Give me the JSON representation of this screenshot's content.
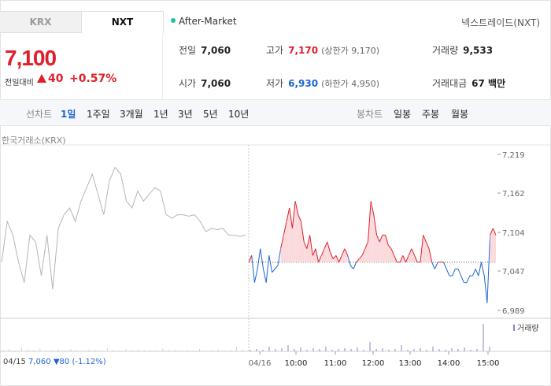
{
  "tabs": {
    "krx": "KRX",
    "nxt": "NXT"
  },
  "session_label": "After-Market",
  "exchange_label": "넥스트레이드(NXT)",
  "price": {
    "current": "7,100",
    "change_label": "전일대비",
    "change_value": "40",
    "change_percent": "+0.57%"
  },
  "stats": {
    "prev_close": {
      "label": "전일",
      "value": "7,060"
    },
    "high": {
      "label": "고가",
      "value": "7,170",
      "limit": "(상한가 9,170)"
    },
    "volume": {
      "label": "거래량",
      "value": "9,533"
    },
    "open": {
      "label": "시가",
      "value": "7,060"
    },
    "low": {
      "label": "저가",
      "value": "6,930",
      "limit": "(하한가 4,950)"
    },
    "amount": {
      "label": "거래대금",
      "value": "67 백만"
    }
  },
  "period_bar": {
    "line_label": "선차트",
    "line_options": [
      "1일",
      "1주일",
      "3개월",
      "1년",
      "3년",
      "5년",
      "10년"
    ],
    "selected": "1일",
    "candle_label": "봉차트",
    "candle_options": [
      "일봉",
      "주봉",
      "월봉"
    ]
  },
  "chart_source": "한국거래소(KRX)",
  "volume_legend": "거래량",
  "prev_day": {
    "date": "04/15",
    "price": "7,060",
    "change": "80",
    "change_pct": "(-1.12%)"
  },
  "colors": {
    "up": "#e01f2d",
    "down": "#1e64d2",
    "accent_green": "#19c3a0",
    "prev_line": "#b5b5b5"
  },
  "chart_data": {
    "type": "line",
    "y_ticks": [
      "7,219",
      "7,162",
      "7,104",
      "7,047",
      "6,989"
    ],
    "ylim": [
      6989,
      7219
    ],
    "base_price": 7060,
    "x_ticks": [
      "04/16",
      "10:00",
      "11:00",
      "12:00",
      "13:00",
      "14:00",
      "15:00"
    ],
    "prev_session": [
      7060,
      7120,
      7100,
      7060,
      7030,
      7100,
      7090,
      7040,
      7100,
      7020,
      7110,
      7130,
      7140,
      7120,
      7150,
      7170,
      7190,
      7160,
      7130,
      7180,
      7200,
      7190,
      7150,
      7140,
      7165,
      7150,
      7160,
      7170,
      7165,
      7130,
      7125,
      7130,
      7130,
      7128,
      7130,
      7120,
      7105,
      7110,
      7108,
      7110,
      7100,
      7100,
      7098,
      7100
    ],
    "current_session": [
      7060,
      7070,
      7030,
      7050,
      7080,
      7050,
      7030,
      7070,
      7045,
      7050,
      7055,
      7080,
      7100,
      7120,
      7140,
      7110,
      7150,
      7130,
      7120,
      7090,
      7080,
      7100,
      7070,
      7080,
      7060,
      7070,
      7080,
      7090,
      7075,
      7065,
      7070,
      7060,
      7070,
      7080,
      7070,
      7055,
      7050,
      7060,
      7065,
      7070,
      7080,
      7090,
      7150,
      7130,
      7100,
      7090,
      7100,
      7100,
      7085,
      7080,
      7070,
      7060,
      7060,
      7070,
      7060,
      7070,
      7080,
      7070,
      7060,
      7060,
      7100,
      7090,
      7080,
      7060,
      7050,
      7060,
      7060,
      7060,
      7050,
      7040,
      7040,
      7050,
      7050,
      7040,
      7030,
      7030,
      7040,
      7040,
      7050,
      7040,
      7060,
      7040,
      7000,
      7100,
      7110,
      7100
    ]
  }
}
